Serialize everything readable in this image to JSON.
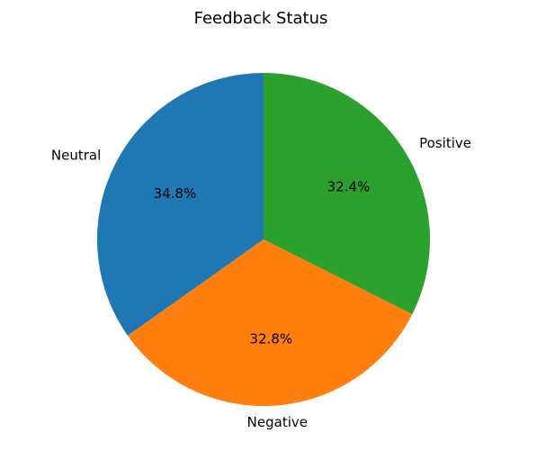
{
  "chart_data": {
    "type": "pie",
    "title": "Feedback Status",
    "categories": [
      "Neutral",
      "Negative",
      "Positive"
    ],
    "values": [
      34.8,
      32.8,
      32.4
    ],
    "value_labels": [
      "34.8%",
      "32.8%",
      "32.4%"
    ],
    "colors": [
      "#1f77b4",
      "#ff7f0e",
      "#2ca02c"
    ],
    "start_angle_deg": 90,
    "direction": "counterclockwise"
  }
}
